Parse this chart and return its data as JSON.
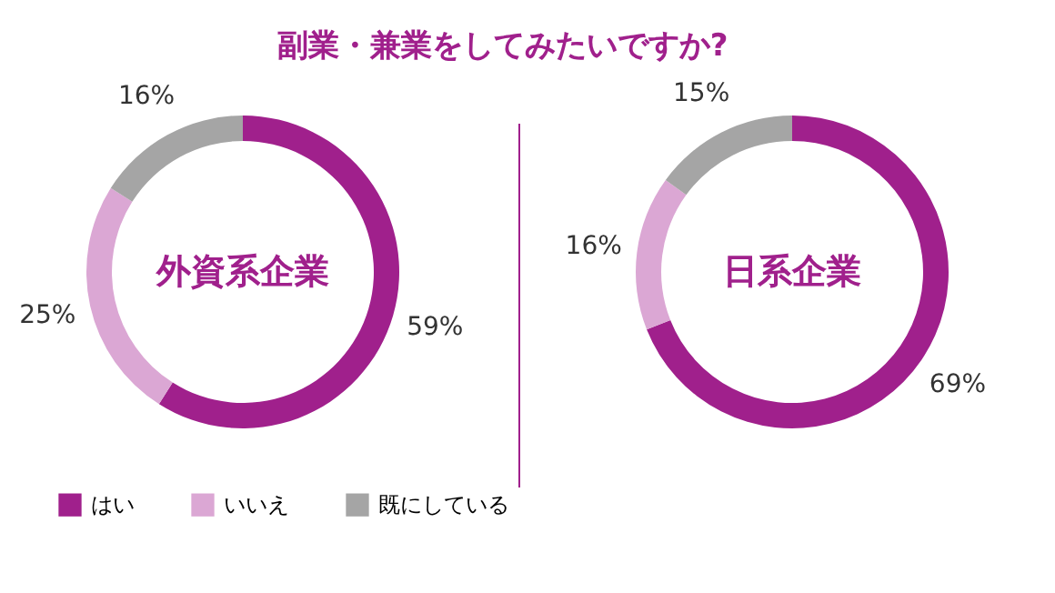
{
  "chart_data": [
    {
      "type": "donut",
      "title": "外資系企業",
      "annotations": [
        "副業・兼業をしてみたいですか?"
      ],
      "categories": [
        "はい",
        "いいえ",
        "既にしている"
      ],
      "values": [
        59,
        25,
        16
      ],
      "colors": [
        "#a0208c",
        "#dba7d4",
        "#a5a5a5"
      ],
      "value_labels": [
        "59%",
        "25%",
        "16%"
      ],
      "legend": "bottom"
    },
    {
      "type": "donut",
      "title": "日系企業",
      "categories": [
        null,
        null,
        null
      ],
      "values": [
        69,
        16,
        15
      ],
      "colors": [
        "#a0208c",
        "#dba7d4",
        "#a5a5a5"
      ],
      "value_labels": [
        "69%",
        "16%",
        "15%"
      ]
    }
  ]
}
